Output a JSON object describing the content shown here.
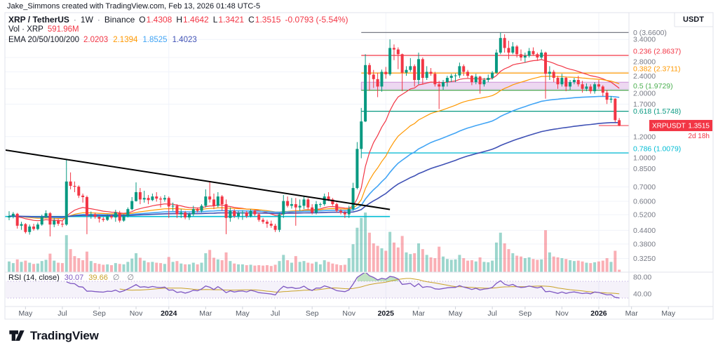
{
  "attribution": "Jake_Simmons created with TradingView.com, Feb 13, 2026 01:48 UTC-5",
  "legend": {
    "symbol": "XRP / TetherUS",
    "sep": "·",
    "interval": "1W",
    "exchange": "Binance",
    "o_label": "O",
    "o": "1.4308",
    "h_label": "H",
    "h": "1.4642",
    "l_label": "L",
    "l": "1.3421",
    "c_label": "C",
    "c": "1.3515",
    "change": "-0.0793 (-5.54%)",
    "vol_label": "Vol · XRP",
    "vol_value": "591.96M",
    "ema_label": "EMA 20/50/100/200",
    "ema_values": [
      "2.0203",
      "2.1394",
      "1.8525",
      "1.4023"
    ]
  },
  "rsi_legend": {
    "label": "RSI (14, close)",
    "value": "30.07",
    "ma_value": "39.66",
    "hidden": "∅ ∅"
  },
  "price_axis": {
    "currency": "USDT",
    "ticks": [
      "3.4000",
      "2.8000",
      "2.4000",
      "2.0000",
      "1.7000",
      "1.2000",
      "1.0000",
      "0.8500",
      "0.7000",
      "0.6000",
      "0.5200",
      "0.4400",
      "0.3800",
      "0.3250"
    ],
    "badge": {
      "symbol": "XRPUSDT",
      "price": "1.3515",
      "countdown": "2d 18h"
    }
  },
  "fib_levels": [
    {
      "label": "0 (3.6600)",
      "price": 3.66,
      "color": "#787b86"
    },
    {
      "label": "0.236 (2.8637)",
      "price": 2.8637,
      "color": "#f23645"
    },
    {
      "label": "0.382 (2.3711)",
      "price": 2.3711,
      "color": "#ff9800"
    },
    {
      "label": "0.5 (1.9729)",
      "price": 1.9729,
      "color": "#4caf50"
    },
    {
      "label": "0.618 (1.5748)",
      "price": 1.5748,
      "color": "#089981"
    },
    {
      "label": "0.786 (1.0079)",
      "price": 1.0079,
      "color": "#00bcd4"
    }
  ],
  "rsi_axis": [
    "80.00",
    "40.00"
  ],
  "time_axis": [
    {
      "label": "May",
      "week": 4
    },
    {
      "label": "Jul",
      "week": 13
    },
    {
      "label": "Sep",
      "week": 22
    },
    {
      "label": "Nov",
      "week": 31
    },
    {
      "label": "2024",
      "week": 39,
      "bold": true
    },
    {
      "label": "Mar",
      "week": 48
    },
    {
      "label": "May",
      "week": 57
    },
    {
      "label": "Jul",
      "week": 65
    },
    {
      "label": "Sep",
      "week": 74
    },
    {
      "label": "Nov",
      "week": 83
    },
    {
      "label": "2025",
      "week": 92,
      "bold": true
    },
    {
      "label": "Mar",
      "week": 100
    },
    {
      "label": "May",
      "week": 109
    },
    {
      "label": "Jul",
      "week": 118
    },
    {
      "label": "Sep",
      "week": 126
    },
    {
      "label": "Nov",
      "week": 135
    },
    {
      "label": "2026",
      "week": 144,
      "bold": true
    },
    {
      "label": "Mar",
      "week": 152
    },
    {
      "label": "May",
      "week": 161
    }
  ],
  "footer": {
    "brand": "TradingView"
  },
  "colors": {
    "up": "#089981",
    "down": "#f23645",
    "vol_up": "rgba(8,153,129,0.4)",
    "vol_down": "rgba(242,54,69,0.4)",
    "ema20": "#f23645",
    "ema50": "#ff9800",
    "ema100": "#42a5f5",
    "ema200": "#3f51b5",
    "rsi": "#7e57c2",
    "rsi_ma": "#c9a227",
    "axis_text": "#787b86",
    "grid": "#f0f3fa",
    "border": "#e0e3eb",
    "badge_bg": "#f23645",
    "dark": "#131722"
  },
  "chart_data": {
    "type": "candlestick",
    "symbol": "XRPUSDT",
    "timeframe": "1W",
    "log_scale": true,
    "price_range": {
      "top": 4.53,
      "bottom": 0.281
    },
    "rsi": {
      "period": 14,
      "value": 30.07,
      "overbought": 70,
      "oversold": 30,
      "range": [
        10,
        90
      ]
    },
    "ema_periods": [
      20,
      50,
      100,
      200
    ],
    "format": [
      "open",
      "high",
      "low",
      "close",
      "volume_millions"
    ],
    "candles": [
      [
        0.505,
        0.54,
        0.49,
        0.512,
        2600
      ],
      [
        0.512,
        0.535,
        0.5,
        0.525,
        2200
      ],
      [
        0.525,
        0.53,
        0.448,
        0.462,
        3100
      ],
      [
        0.462,
        0.482,
        0.442,
        0.47,
        2500
      ],
      [
        0.47,
        0.475,
        0.425,
        0.432,
        2800
      ],
      [
        0.432,
        0.468,
        0.42,
        0.458,
        2300
      ],
      [
        0.458,
        0.472,
        0.438,
        0.446,
        2000
      ],
      [
        0.446,
        0.478,
        0.44,
        0.468,
        2100
      ],
      [
        0.468,
        0.52,
        0.462,
        0.508,
        2700
      ],
      [
        0.508,
        0.545,
        0.502,
        0.528,
        3000
      ],
      [
        0.528,
        0.535,
        0.412,
        0.468,
        4500
      ],
      [
        0.468,
        0.502,
        0.455,
        0.488,
        2800
      ],
      [
        0.488,
        0.498,
        0.462,
        0.472,
        2300
      ],
      [
        0.472,
        0.488,
        0.455,
        0.468,
        2200
      ],
      [
        0.468,
        0.938,
        0.462,
        0.742,
        9000
      ],
      [
        0.742,
        0.818,
        0.682,
        0.708,
        5600
      ],
      [
        0.708,
        0.742,
        0.662,
        0.702,
        3900
      ],
      [
        0.702,
        0.712,
        0.622,
        0.638,
        3400
      ],
      [
        0.638,
        0.652,
        0.592,
        0.628,
        2900
      ],
      [
        0.628,
        0.638,
        0.422,
        0.518,
        5000
      ],
      [
        0.518,
        0.538,
        0.498,
        0.522,
        2700
      ],
      [
        0.522,
        0.532,
        0.498,
        0.508,
        2200
      ],
      [
        0.508,
        0.512,
        0.478,
        0.498,
        2000
      ],
      [
        0.498,
        0.508,
        0.482,
        0.492,
        1800
      ],
      [
        0.492,
        0.522,
        0.486,
        0.512,
        1900
      ],
      [
        0.512,
        0.522,
        0.495,
        0.505,
        1700
      ],
      [
        0.505,
        0.548,
        0.482,
        0.532,
        2200
      ],
      [
        0.532,
        0.542,
        0.478,
        0.488,
        2000
      ],
      [
        0.488,
        0.522,
        0.482,
        0.512,
        1900
      ],
      [
        0.512,
        0.562,
        0.505,
        0.552,
        2500
      ],
      [
        0.552,
        0.628,
        0.545,
        0.602,
        3300
      ],
      [
        0.602,
        0.735,
        0.598,
        0.662,
        4600
      ],
      [
        0.662,
        0.692,
        0.582,
        0.612,
        3500
      ],
      [
        0.612,
        0.672,
        0.592,
        0.622,
        2800
      ],
      [
        0.622,
        0.642,
        0.582,
        0.608,
        2400
      ],
      [
        0.608,
        0.652,
        0.602,
        0.632,
        2500
      ],
      [
        0.632,
        0.662,
        0.598,
        0.618,
        2300
      ],
      [
        0.618,
        0.632,
        0.562,
        0.612,
        2200
      ],
      [
        0.612,
        0.642,
        0.598,
        0.622,
        2000
      ],
      [
        0.622,
        0.632,
        0.502,
        0.568,
        3700
      ],
      [
        0.568,
        0.592,
        0.542,
        0.572,
        2500
      ],
      [
        0.572,
        0.582,
        0.502,
        0.522,
        2700
      ],
      [
        0.522,
        0.552,
        0.502,
        0.532,
        2100
      ],
      [
        0.532,
        0.542,
        0.495,
        0.505,
        1900
      ],
      [
        0.505,
        0.532,
        0.492,
        0.522,
        1900
      ],
      [
        0.522,
        0.572,
        0.512,
        0.552,
        2300
      ],
      [
        0.552,
        0.562,
        0.532,
        0.542,
        1900
      ],
      [
        0.542,
        0.582,
        0.532,
        0.572,
        2300
      ],
      [
        0.572,
        0.682,
        0.562,
        0.632,
        4600
      ],
      [
        0.632,
        0.742,
        0.592,
        0.612,
        5400
      ],
      [
        0.612,
        0.652,
        0.552,
        0.572,
        3500
      ],
      [
        0.572,
        0.662,
        0.562,
        0.632,
        3100
      ],
      [
        0.632,
        0.642,
        0.542,
        0.582,
        2900
      ],
      [
        0.582,
        0.612,
        0.422,
        0.502,
        4800
      ],
      [
        0.502,
        0.562,
        0.482,
        0.542,
        2700
      ],
      [
        0.542,
        0.552,
        0.502,
        0.512,
        2100
      ],
      [
        0.512,
        0.542,
        0.495,
        0.528,
        1900
      ],
      [
        0.528,
        0.545,
        0.492,
        0.532,
        1900
      ],
      [
        0.532,
        0.542,
        0.502,
        0.512,
        1700
      ],
      [
        0.512,
        0.552,
        0.505,
        0.542,
        1800
      ],
      [
        0.542,
        0.548,
        0.512,
        0.522,
        1600
      ],
      [
        0.522,
        0.532,
        0.482,
        0.492,
        1700
      ],
      [
        0.492,
        0.502,
        0.472,
        0.482,
        1600
      ],
      [
        0.482,
        0.492,
        0.452,
        0.472,
        1700
      ],
      [
        0.472,
        0.488,
        0.452,
        0.462,
        1500
      ],
      [
        0.462,
        0.472,
        0.432,
        0.442,
        1800
      ],
      [
        0.442,
        0.532,
        0.432,
        0.522,
        2700
      ],
      [
        0.522,
        0.642,
        0.502,
        0.602,
        4200
      ],
      [
        0.602,
        0.632,
        0.562,
        0.572,
        2900
      ],
      [
        0.572,
        0.622,
        0.555,
        0.582,
        2300
      ],
      [
        0.582,
        0.622,
        0.462,
        0.562,
        3900
      ],
      [
        0.562,
        0.612,
        0.542,
        0.572,
        2500
      ],
      [
        0.572,
        0.632,
        0.552,
        0.612,
        2700
      ],
      [
        0.612,
        0.622,
        0.552,
        0.562,
        2300
      ],
      [
        0.562,
        0.582,
        0.522,
        0.532,
        2100
      ],
      [
        0.532,
        0.602,
        0.522,
        0.582,
        2500
      ],
      [
        0.582,
        0.592,
        0.562,
        0.582,
        1900
      ],
      [
        0.582,
        0.652,
        0.572,
        0.632,
        2900
      ],
      [
        0.632,
        0.662,
        0.602,
        0.612,
        2500
      ],
      [
        0.612,
        0.622,
        0.572,
        0.582,
        2100
      ],
      [
        0.582,
        0.592,
        0.532,
        0.542,
        1900
      ],
      [
        0.542,
        0.552,
        0.522,
        0.532,
        1700
      ],
      [
        0.532,
        0.542,
        0.502,
        0.522,
        1800
      ],
      [
        0.522,
        0.572,
        0.502,
        0.552,
        3400
      ],
      [
        0.552,
        0.732,
        0.542,
        0.692,
        6800
      ],
      [
        0.692,
        1.132,
        0.682,
        1.052,
        10800
      ],
      [
        1.052,
        1.632,
        0.952,
        1.412,
        13200
      ],
      [
        1.412,
        2.902,
        1.402,
        2.582,
        14500
      ],
      [
        2.582,
        2.642,
        1.962,
        2.332,
        9600
      ],
      [
        2.332,
        2.452,
        2.022,
        2.222,
        7000
      ],
      [
        2.222,
        2.382,
        1.832,
        2.052,
        6400
      ],
      [
        2.052,
        2.462,
        1.942,
        2.402,
        5800
      ],
      [
        2.402,
        2.532,
        2.232,
        2.342,
        5200
      ],
      [
        2.342,
        3.402,
        2.302,
        3.102,
        9800
      ],
      [
        3.102,
        3.222,
        2.722,
        3.052,
        7200
      ],
      [
        3.052,
        3.122,
        2.472,
        2.902,
        6000
      ],
      [
        2.902,
        2.922,
        1.952,
        2.382,
        8800
      ],
      [
        2.382,
        2.552,
        2.302,
        2.452,
        4800
      ],
      [
        2.452,
        2.782,
        2.402,
        2.552,
        4400
      ],
      [
        2.552,
        2.602,
        2.052,
        2.202,
        4600
      ],
      [
        2.202,
        2.952,
        2.102,
        2.752,
        7000
      ],
      [
        2.752,
        2.802,
        2.102,
        2.252,
        5600
      ],
      [
        2.252,
        2.552,
        2.202,
        2.402,
        4200
      ],
      [
        2.402,
        2.502,
        2.302,
        2.352,
        3600
      ],
      [
        2.352,
        2.402,
        2.052,
        2.102,
        3400
      ],
      [
        2.102,
        2.182,
        1.612,
        2.052,
        6200
      ],
      [
        2.052,
        2.202,
        1.982,
        2.152,
        3800
      ],
      [
        2.152,
        2.302,
        2.052,
        2.252,
        3200
      ],
      [
        2.252,
        2.352,
        2.152,
        2.302,
        3000
      ],
      [
        2.302,
        2.362,
        2.152,
        2.312,
        3100
      ],
      [
        2.312,
        2.652,
        2.252,
        2.552,
        4200
      ],
      [
        2.552,
        2.602,
        2.302,
        2.402,
        3400
      ],
      [
        2.402,
        2.452,
        2.252,
        2.302,
        2800
      ],
      [
        2.302,
        2.322,
        2.082,
        2.152,
        2900
      ],
      [
        2.152,
        2.352,
        2.102,
        2.282,
        2600
      ],
      [
        2.282,
        2.302,
        1.902,
        2.102,
        3600
      ],
      [
        2.102,
        2.252,
        2.052,
        2.202,
        2500
      ],
      [
        2.202,
        2.332,
        2.152,
        2.252,
        2400
      ],
      [
        2.252,
        2.422,
        2.212,
        2.382,
        2800
      ],
      [
        2.382,
        3.052,
        2.352,
        2.952,
        7200
      ],
      [
        2.952,
        3.662,
        2.902,
        3.452,
        9600
      ],
      [
        3.452,
        3.592,
        2.952,
        3.102,
        7000
      ],
      [
        3.102,
        3.352,
        2.752,
        2.952,
        5600
      ],
      [
        2.952,
        3.302,
        2.902,
        3.152,
        4600
      ],
      [
        3.152,
        3.202,
        2.802,
        2.902,
        4000
      ],
      [
        2.902,
        3.052,
        2.702,
        2.802,
        3800
      ],
      [
        2.802,
        2.952,
        2.652,
        2.852,
        3400
      ],
      [
        2.852,
        3.102,
        2.802,
        3.002,
        3600
      ],
      [
        3.002,
        3.122,
        2.852,
        2.902,
        3200
      ],
      [
        2.902,
        2.952,
        2.702,
        2.802,
        3000
      ],
      [
        2.802,
        3.052,
        2.752,
        2.952,
        3100
      ],
      [
        2.952,
        2.982,
        1.802,
        2.352,
        10200
      ],
      [
        2.352,
        2.552,
        2.202,
        2.402,
        4800
      ],
      [
        2.402,
        2.452,
        2.152,
        2.252,
        3800
      ],
      [
        2.252,
        2.302,
        2.002,
        2.102,
        3600
      ],
      [
        2.102,
        2.352,
        2.052,
        2.252,
        3400
      ],
      [
        2.252,
        2.282,
        1.952,
        2.052,
        3200
      ],
      [
        2.052,
        2.202,
        1.982,
        2.152,
        2900
      ],
      [
        2.152,
        2.252,
        2.102,
        2.202,
        2700
      ],
      [
        2.202,
        2.302,
        2.052,
        2.102,
        2800
      ],
      [
        2.102,
        2.182,
        1.922,
        2.002,
        2600
      ],
      [
        2.002,
        2.122,
        1.952,
        2.052,
        2300
      ],
      [
        2.052,
        2.102,
        1.902,
        1.952,
        2200
      ],
      [
        1.952,
        2.152,
        1.902,
        2.102,
        2400
      ],
      [
        2.102,
        2.202,
        2.002,
        2.052,
        2600
      ],
      [
        2.052,
        2.082,
        1.852,
        1.922,
        2800
      ],
      [
        1.922,
        1.982,
        1.702,
        1.782,
        3400
      ],
      [
        1.782,
        1.852,
        1.722,
        1.802,
        2500
      ],
      [
        1.802,
        1.812,
        1.402,
        1.432,
        5200
      ],
      [
        1.4308,
        1.4642,
        1.3421,
        1.3515,
        592
      ]
    ],
    "drawings": {
      "trendline": {
        "from": {
          "week": -1,
          "price": 1.04
        },
        "to": {
          "week": 93,
          "price": 0.55
        },
        "color": "#000000"
      },
      "horizontal_ray": {
        "from": {
          "week": -1,
          "price": 0.51
        },
        "to": {
          "week": 93,
          "price": 0.51
        },
        "color": "#00bcd4"
      },
      "zone": {
        "from_week": 86,
        "price_top": 2.15,
        "price_bottom": 1.97,
        "fill": "rgba(156,39,176,0.18)",
        "stroke": "rgba(156,39,176,0.45)"
      },
      "fib_start_week": 86
    }
  }
}
